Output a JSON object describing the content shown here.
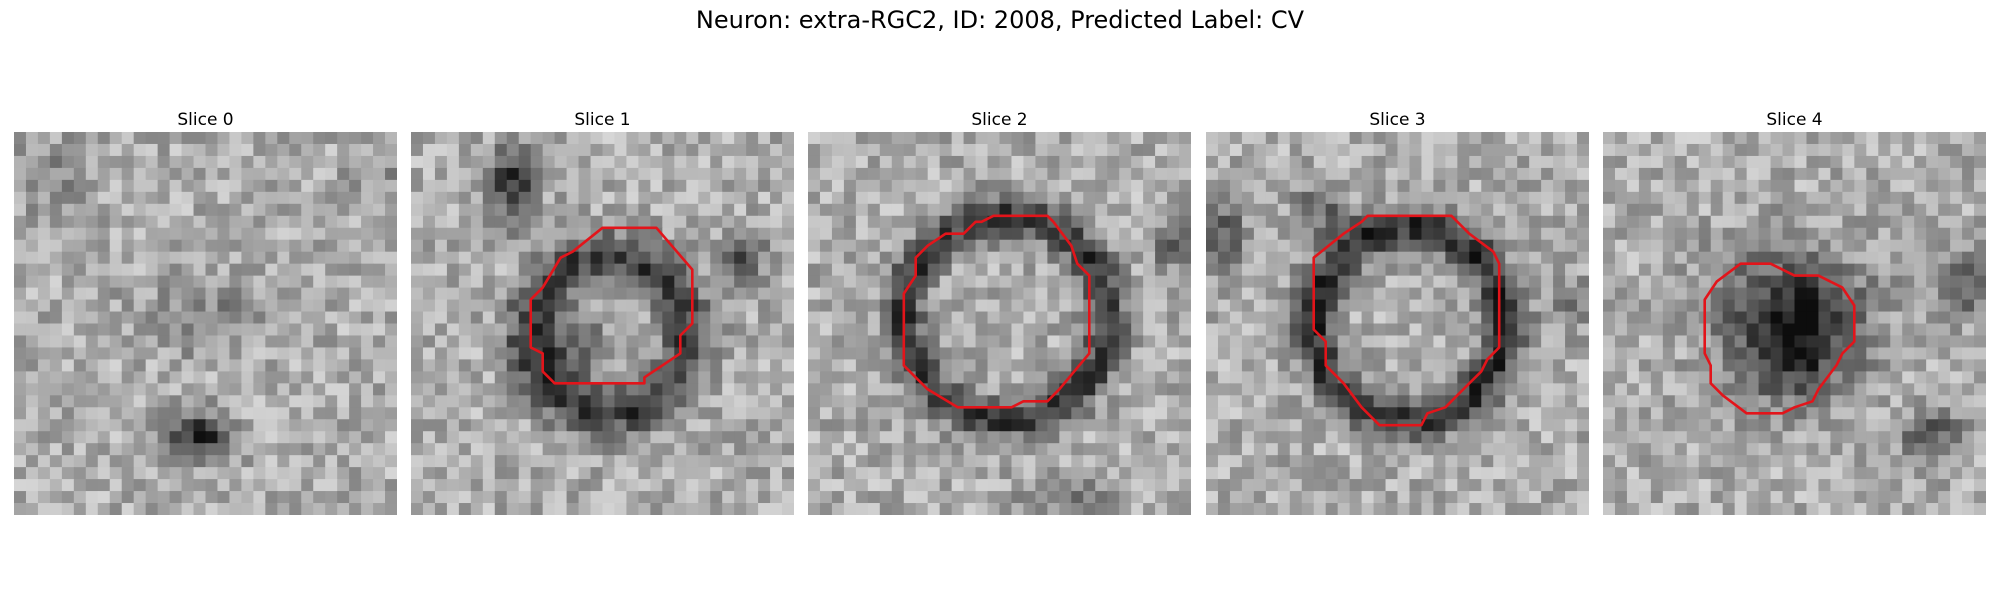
{
  "figure": {
    "title": "Neuron: extra-RGC2, ID: 2008, Predicted Label: CV"
  },
  "colors": {
    "contour": "#e3141a",
    "background": "#ffffff"
  },
  "panels": [
    {
      "title": "Slice 0"
    },
    {
      "title": "Slice 1"
    },
    {
      "title": "Slice 2"
    },
    {
      "title": "Slice 3"
    },
    {
      "title": "Slice 4"
    }
  ]
}
